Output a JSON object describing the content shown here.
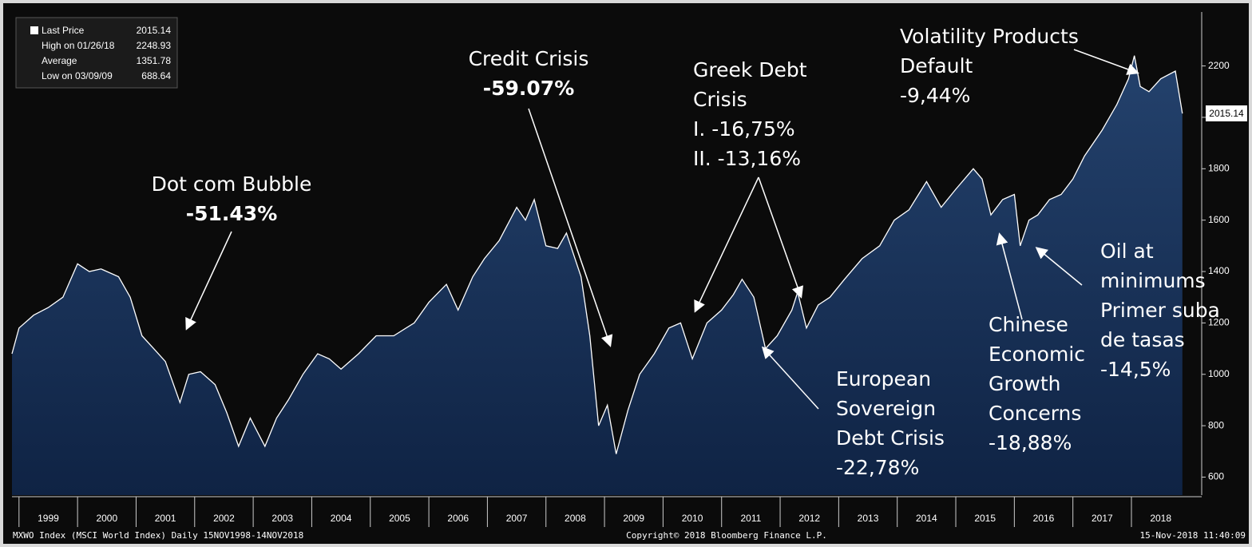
{
  "chart_data": {
    "type": "area",
    "x": [
      1998.88,
      1999.0,
      1999.25,
      1999.5,
      1999.75,
      2000.0,
      2000.2,
      2000.4,
      2000.7,
      2000.9,
      2001.1,
      2001.3,
      2001.5,
      2001.75,
      2001.9,
      2002.1,
      2002.35,
      2002.55,
      2002.75,
      2002.95,
      2003.2,
      2003.4,
      2003.6,
      2003.85,
      2004.1,
      2004.3,
      2004.5,
      2004.8,
      2005.1,
      2005.4,
      2005.75,
      2006.0,
      2006.3,
      2006.5,
      2006.75,
      2006.95,
      2007.2,
      2007.5,
      2007.65,
      2007.8,
      2008.0,
      2008.2,
      2008.35,
      2008.6,
      2008.75,
      2008.9,
      2009.05,
      2009.2,
      2009.4,
      2009.6,
      2009.85,
      2010.1,
      2010.3,
      2010.5,
      2010.75,
      2011.0,
      2011.2,
      2011.35,
      2011.55,
      2011.75,
      2011.95,
      2012.2,
      2012.3,
      2012.45,
      2012.65,
      2012.85,
      2013.1,
      2013.4,
      2013.7,
      2013.95,
      2014.2,
      2014.5,
      2014.75,
      2015.0,
      2015.3,
      2015.45,
      2015.6,
      2015.8,
      2016.0,
      2016.1,
      2016.25,
      2016.4,
      2016.6,
      2016.8,
      2017.0,
      2017.2,
      2017.5,
      2017.75,
      2017.95,
      2018.05,
      2018.15,
      2018.3,
      2018.5,
      2018.75,
      2018.87
    ],
    "values": [
      1080,
      1180,
      1230,
      1260,
      1300,
      1430,
      1400,
      1410,
      1380,
      1300,
      1150,
      1100,
      1050,
      890,
      1000,
      1010,
      960,
      850,
      720,
      830,
      720,
      830,
      900,
      1000,
      1080,
      1060,
      1020,
      1080,
      1150,
      1150,
      1200,
      1280,
      1350,
      1250,
      1380,
      1450,
      1520,
      1650,
      1600,
      1680,
      1500,
      1490,
      1550,
      1380,
      1150,
      800,
      880,
      690,
      860,
      1000,
      1080,
      1180,
      1200,
      1060,
      1200,
      1250,
      1310,
      1370,
      1300,
      1100,
      1150,
      1250,
      1320,
      1180,
      1270,
      1300,
      1370,
      1450,
      1500,
      1600,
      1640,
      1750,
      1650,
      1720,
      1800,
      1760,
      1620,
      1680,
      1700,
      1500,
      1600,
      1620,
      1680,
      1700,
      1760,
      1850,
      1950,
      2050,
      2150,
      2240,
      2120,
      2100,
      2150,
      2180,
      2015
    ],
    "color": "#ffffff",
    "fill_top": "#24426d",
    "fill_bottom": "#0f2344",
    "xlim": [
      1998.88,
      2019.2
    ],
    "xticks": [
      1999,
      2000,
      2001,
      2002,
      2003,
      2004,
      2005,
      2006,
      2007,
      2008,
      2009,
      2010,
      2011,
      2012,
      2013,
      2014,
      2015,
      2016,
      2017,
      2018
    ],
    "ylim": [
      530,
      2410
    ],
    "yticks": [
      600,
      800,
      1000,
      1200,
      1400,
      1600,
      1800,
      2000,
      2200
    ],
    "annotations": [
      {
        "lines": [
          "Dot com Bubble",
          "-51.43%"
        ]
      },
      {
        "lines": [
          "Credit Crisis",
          "-59.07%"
        ]
      },
      {
        "lines": [
          "Greek Debt",
          "Crisis",
          "I. -16,75%",
          "II. -13,16%"
        ]
      },
      {
        "lines": [
          "Volatility Products",
          "Default",
          "-9,44%"
        ]
      },
      {
        "lines": [
          "European",
          "Sovereign",
          "Debt Crisis",
          "-22,78%"
        ]
      },
      {
        "lines": [
          "Chinese",
          "Economic",
          "Growth",
          "Concerns",
          "-18,88%"
        ]
      },
      {
        "lines": [
          "Oil at",
          "minimums",
          "Primer suba",
          "de tasas",
          "-14,5%"
        ]
      }
    ],
    "legend": [
      {
        "label": "Last Price",
        "value": "2015.14"
      },
      {
        "label": "High on 01/26/18",
        "value": "2248.93"
      },
      {
        "label": "Average",
        "value": "1351.78"
      },
      {
        "label": "Low on 03/09/09",
        "value": "688.64"
      }
    ],
    "last_price_tag": "2015.14",
    "footer_left": "MXWO Index (MSCI World Index)  Daily 15NOV1998-14NOV2018",
    "footer_center": "Copyright© 2018 Bloomberg Finance L.P.",
    "footer_right": "15-Nov-2018 11:40:09"
  }
}
